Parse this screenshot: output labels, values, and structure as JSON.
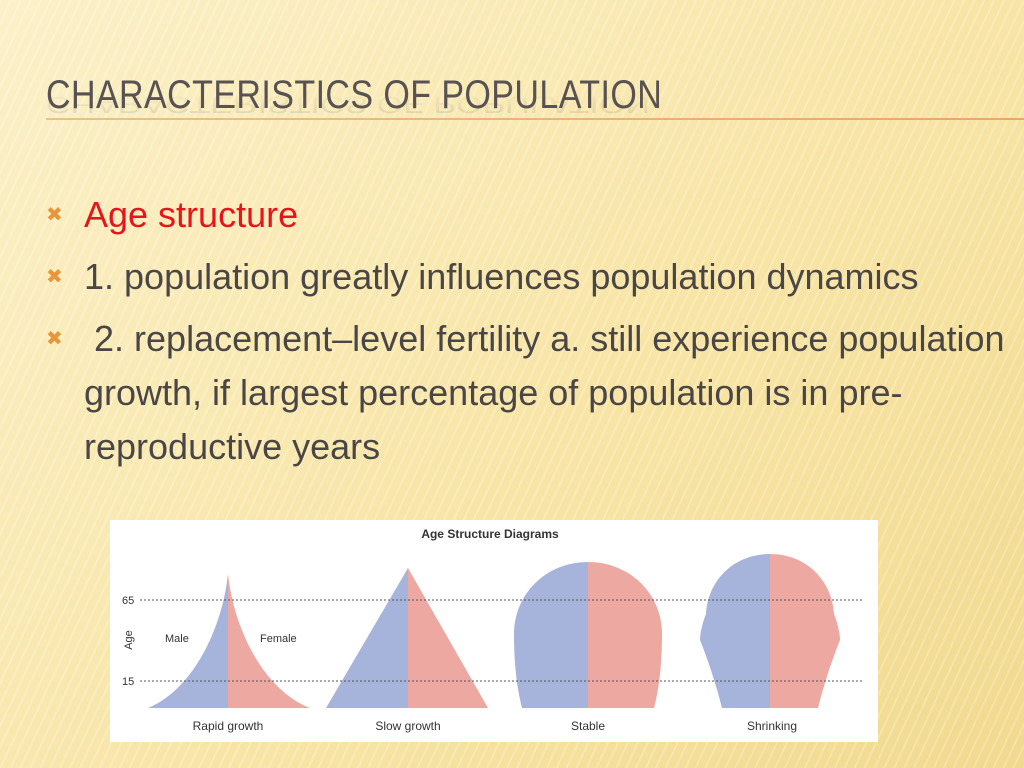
{
  "slide": {
    "title": "CHARACTERISTICS OF POPULATION",
    "bullets": [
      {
        "text": "Age structure",
        "color": "#e8141c"
      },
      {
        "text": "1. population greatly influences population dynamics",
        "color": "#4a4646"
      },
      {
        "text": " 2. replacement–level fertility a. still experience population growth, if largest percentage of population is in pre-reproductive years",
        "color": "#4a4646"
      }
    ],
    "bullet_icon": "x-mark-icon",
    "accent_color": "#e8963c"
  },
  "diagram": {
    "title": "Age Structure Diagrams",
    "y_axis_label": "Age",
    "ticks": [
      "65",
      "15"
    ],
    "male_label": "Male",
    "female_label": "Female",
    "male_color": "#a6b4dc",
    "female_color": "#eda8a2",
    "panels": [
      "Rapid growth",
      "Slow growth",
      "Stable",
      "Shrinking"
    ]
  }
}
